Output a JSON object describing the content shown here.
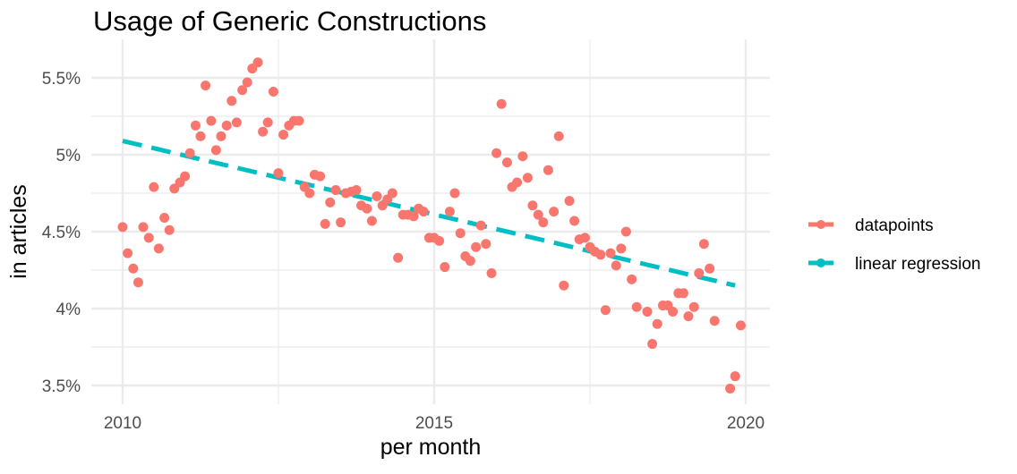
{
  "chart_data": {
    "type": "scatter",
    "title": "Usage of Generic Constructions",
    "xlabel": "per month",
    "ylabel": "in articles",
    "xlim": [
      2009.5,
      2020.4
    ],
    "ylim": [
      3.4,
      5.67
    ],
    "x_ticks": [
      2010,
      2015,
      2020
    ],
    "x_tick_labels": [
      "2010",
      "2015",
      "2020"
    ],
    "y_ticks": [
      3.5,
      4.0,
      4.5,
      5.0,
      5.5
    ],
    "y_tick_labels": [
      "3.5%",
      "4%",
      "4.5%",
      "5%",
      "5.5%"
    ],
    "grid": true,
    "legend_position": "right",
    "series": [
      {
        "name": "datapoints",
        "color": "#f8766d",
        "style": "points",
        "points": [
          [
            2010.0,
            4.53
          ],
          [
            2010.08,
            4.36
          ],
          [
            2010.17,
            4.26
          ],
          [
            2010.25,
            4.17
          ],
          [
            2010.33,
            4.53
          ],
          [
            2010.42,
            4.46
          ],
          [
            2010.5,
            4.79
          ],
          [
            2010.58,
            4.39
          ],
          [
            2010.67,
            4.59
          ],
          [
            2010.75,
            4.51
          ],
          [
            2010.83,
            4.78
          ],
          [
            2010.92,
            4.82
          ],
          [
            2011.0,
            4.86
          ],
          [
            2011.08,
            5.01
          ],
          [
            2011.17,
            5.19
          ],
          [
            2011.25,
            5.12
          ],
          [
            2011.33,
            5.45
          ],
          [
            2011.42,
            5.22
          ],
          [
            2011.5,
            5.03
          ],
          [
            2011.58,
            5.12
          ],
          [
            2011.67,
            5.19
          ],
          [
            2011.75,
            5.35
          ],
          [
            2011.83,
            5.21
          ],
          [
            2011.92,
            5.42
          ],
          [
            2012.0,
            5.47
          ],
          [
            2012.08,
            5.56
          ],
          [
            2012.17,
            5.6
          ],
          [
            2012.25,
            5.15
          ],
          [
            2012.33,
            5.21
          ],
          [
            2012.42,
            5.41
          ],
          [
            2012.5,
            4.88
          ],
          [
            2012.58,
            5.13
          ],
          [
            2012.67,
            5.19
          ],
          [
            2012.75,
            5.22
          ],
          [
            2012.83,
            5.22
          ],
          [
            2012.92,
            4.79
          ],
          [
            2013.0,
            4.75
          ],
          [
            2013.08,
            4.87
          ],
          [
            2013.17,
            4.86
          ],
          [
            2013.25,
            4.55
          ],
          [
            2013.33,
            4.69
          ],
          [
            2013.42,
            4.77
          ],
          [
            2013.5,
            4.56
          ],
          [
            2013.58,
            4.75
          ],
          [
            2013.67,
            4.76
          ],
          [
            2013.75,
            4.77
          ],
          [
            2013.83,
            4.67
          ],
          [
            2013.92,
            4.65
          ],
          [
            2014.0,
            4.57
          ],
          [
            2014.08,
            4.73
          ],
          [
            2014.17,
            4.67
          ],
          [
            2014.25,
            4.71
          ],
          [
            2014.33,
            4.75
          ],
          [
            2014.42,
            4.33
          ],
          [
            2014.5,
            4.61
          ],
          [
            2014.58,
            4.61
          ],
          [
            2014.67,
            4.6
          ],
          [
            2014.75,
            4.65
          ],
          [
            2014.83,
            4.63
          ],
          [
            2014.92,
            4.46
          ],
          [
            2015.0,
            4.46
          ],
          [
            2015.08,
            4.44
          ],
          [
            2015.17,
            4.27
          ],
          [
            2015.25,
            4.63
          ],
          [
            2015.33,
            4.75
          ],
          [
            2015.42,
            4.49
          ],
          [
            2015.5,
            4.34
          ],
          [
            2015.58,
            4.31
          ],
          [
            2015.67,
            4.4
          ],
          [
            2015.75,
            4.54
          ],
          [
            2015.83,
            4.42
          ],
          [
            2015.92,
            4.23
          ],
          [
            2016.0,
            5.01
          ],
          [
            2016.08,
            5.33
          ],
          [
            2016.17,
            4.95
          ],
          [
            2016.25,
            4.79
          ],
          [
            2016.33,
            4.82
          ],
          [
            2016.42,
            4.99
          ],
          [
            2016.5,
            4.85
          ],
          [
            2016.58,
            4.67
          ],
          [
            2016.67,
            4.61
          ],
          [
            2016.75,
            4.56
          ],
          [
            2016.83,
            4.9
          ],
          [
            2016.92,
            4.63
          ],
          [
            2017.0,
            5.12
          ],
          [
            2017.08,
            4.15
          ],
          [
            2017.17,
            4.7
          ],
          [
            2017.25,
            4.57
          ],
          [
            2017.33,
            4.45
          ],
          [
            2017.42,
            4.46
          ],
          [
            2017.5,
            4.4
          ],
          [
            2017.58,
            4.37
          ],
          [
            2017.67,
            4.35
          ],
          [
            2017.75,
            3.99
          ],
          [
            2017.83,
            4.36
          ],
          [
            2017.92,
            4.28
          ],
          [
            2018.0,
            4.39
          ],
          [
            2018.08,
            4.5
          ],
          [
            2018.17,
            4.19
          ],
          [
            2018.25,
            4.01
          ],
          [
            2018.42,
            3.98
          ],
          [
            2018.5,
            3.77
          ],
          [
            2018.58,
            3.9
          ],
          [
            2018.67,
            4.02
          ],
          [
            2018.75,
            4.02
          ],
          [
            2018.83,
            3.98
          ],
          [
            2018.92,
            4.1
          ],
          [
            2019.0,
            4.1
          ],
          [
            2019.08,
            3.95
          ],
          [
            2019.17,
            4.01
          ],
          [
            2019.25,
            4.23
          ],
          [
            2019.33,
            4.42
          ],
          [
            2019.42,
            4.26
          ],
          [
            2019.5,
            3.92
          ],
          [
            2019.75,
            3.48
          ],
          [
            2019.83,
            3.56
          ],
          [
            2019.92,
            3.89
          ]
        ]
      },
      {
        "name": "linear regression",
        "color": "#00bfc4",
        "style": "dashed-line",
        "points": [
          [
            2010.0,
            5.09
          ],
          [
            2019.83,
            4.15
          ]
        ]
      }
    ]
  }
}
